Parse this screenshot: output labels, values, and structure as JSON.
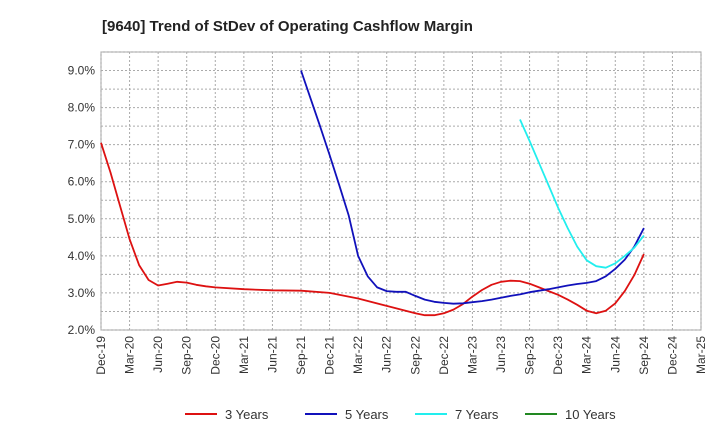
{
  "chart_data": {
    "type": "line",
    "title": "[9640]  Trend of StDev of Operating Cashflow Margin",
    "xlabel": "",
    "ylabel": "",
    "x_ticks": [
      "Dec-19",
      "Mar-20",
      "Jun-20",
      "Sep-20",
      "Dec-20",
      "Mar-21",
      "Jun-21",
      "Sep-21",
      "Dec-21",
      "Mar-22",
      "Jun-22",
      "Sep-22",
      "Dec-22",
      "Mar-23",
      "Jun-23",
      "Sep-23",
      "Dec-23",
      "Mar-24",
      "Jun-24",
      "Sep-24",
      "Dec-24",
      "Mar-25"
    ],
    "y_ticks": [
      "2.0%",
      "3.0%",
      "4.0%",
      "5.0%",
      "6.0%",
      "7.0%",
      "8.0%",
      "9.0%"
    ],
    "ylim": [
      2.0,
      9.5
    ],
    "grid": true,
    "legend_position": "bottom",
    "series": [
      {
        "name": "3 Years",
        "color": "#dd1111",
        "x": [
          "Dec-19",
          "Jan-20",
          "Feb-20",
          "Mar-20",
          "Apr-20",
          "May-20",
          "Jun-20",
          "Jul-20",
          "Aug-20",
          "Sep-20",
          "Oct-20",
          "Nov-20",
          "Dec-20",
          "Mar-21",
          "Jun-21",
          "Sep-21",
          "Dec-21",
          "Mar-22",
          "Jun-22",
          "Sep-22",
          "Oct-22",
          "Nov-22",
          "Dec-22",
          "Jan-23",
          "Feb-23",
          "Mar-23",
          "Apr-23",
          "May-23",
          "Jun-23",
          "Jul-23",
          "Aug-23",
          "Sep-23",
          "Oct-23",
          "Nov-23",
          "Dec-23",
          "Jan-24",
          "Feb-24",
          "Mar-24",
          "Apr-24",
          "May-24",
          "Jun-24",
          "Jul-24",
          "Aug-24",
          "Sep-24"
        ],
        "values": [
          7.05,
          6.25,
          5.35,
          4.45,
          3.75,
          3.35,
          3.2,
          3.25,
          3.3,
          3.28,
          3.22,
          3.18,
          3.15,
          3.1,
          3.07,
          3.06,
          3.0,
          2.85,
          2.65,
          2.45,
          2.4,
          2.4,
          2.45,
          2.55,
          2.7,
          2.9,
          3.08,
          3.22,
          3.3,
          3.33,
          3.32,
          3.25,
          3.15,
          3.05,
          2.95,
          2.82,
          2.68,
          2.52,
          2.45,
          2.52,
          2.72,
          3.05,
          3.48,
          4.05
        ]
      },
      {
        "name": "5 Years",
        "color": "#1111bb",
        "x": [
          "Sep-21",
          "Oct-21",
          "Nov-21",
          "Dec-21",
          "Jan-22",
          "Feb-22",
          "Mar-22",
          "Apr-22",
          "May-22",
          "Jun-22",
          "Jul-22",
          "Aug-22",
          "Sep-22",
          "Oct-22",
          "Nov-22",
          "Dec-22",
          "Jan-23",
          "Feb-23",
          "Mar-23",
          "Apr-23",
          "May-23",
          "Jun-23",
          "Jul-23",
          "Aug-23",
          "Sep-23",
          "Oct-23",
          "Nov-23",
          "Dec-23",
          "Jan-24",
          "Feb-24",
          "Mar-24",
          "Apr-24",
          "May-24",
          "Jun-24",
          "Jul-24",
          "Aug-24",
          "Sep-24"
        ],
        "values": [
          9.0,
          8.25,
          7.5,
          6.72,
          5.92,
          5.1,
          4.0,
          3.45,
          3.15,
          3.05,
          3.03,
          3.03,
          2.92,
          2.82,
          2.76,
          2.73,
          2.71,
          2.72,
          2.75,
          2.78,
          2.82,
          2.87,
          2.92,
          2.96,
          3.02,
          3.06,
          3.1,
          3.15,
          3.2,
          3.24,
          3.27,
          3.32,
          3.45,
          3.65,
          3.9,
          4.25,
          4.75
        ]
      },
      {
        "name": "7 Years",
        "color": "#22eeee",
        "x": [
          "Aug-23",
          "Sep-23",
          "Oct-23",
          "Nov-23",
          "Dec-23",
          "Jan-24",
          "Feb-24",
          "Mar-24",
          "Apr-24",
          "May-24",
          "Jun-24",
          "Jul-24",
          "Aug-24",
          "Sep-24"
        ],
        "values": [
          7.68,
          7.1,
          6.5,
          5.9,
          5.3,
          4.75,
          4.25,
          3.88,
          3.72,
          3.68,
          3.8,
          4.0,
          4.22,
          4.55
        ]
      },
      {
        "name": "10 Years",
        "color": "#228822",
        "x": [],
        "values": []
      }
    ]
  }
}
